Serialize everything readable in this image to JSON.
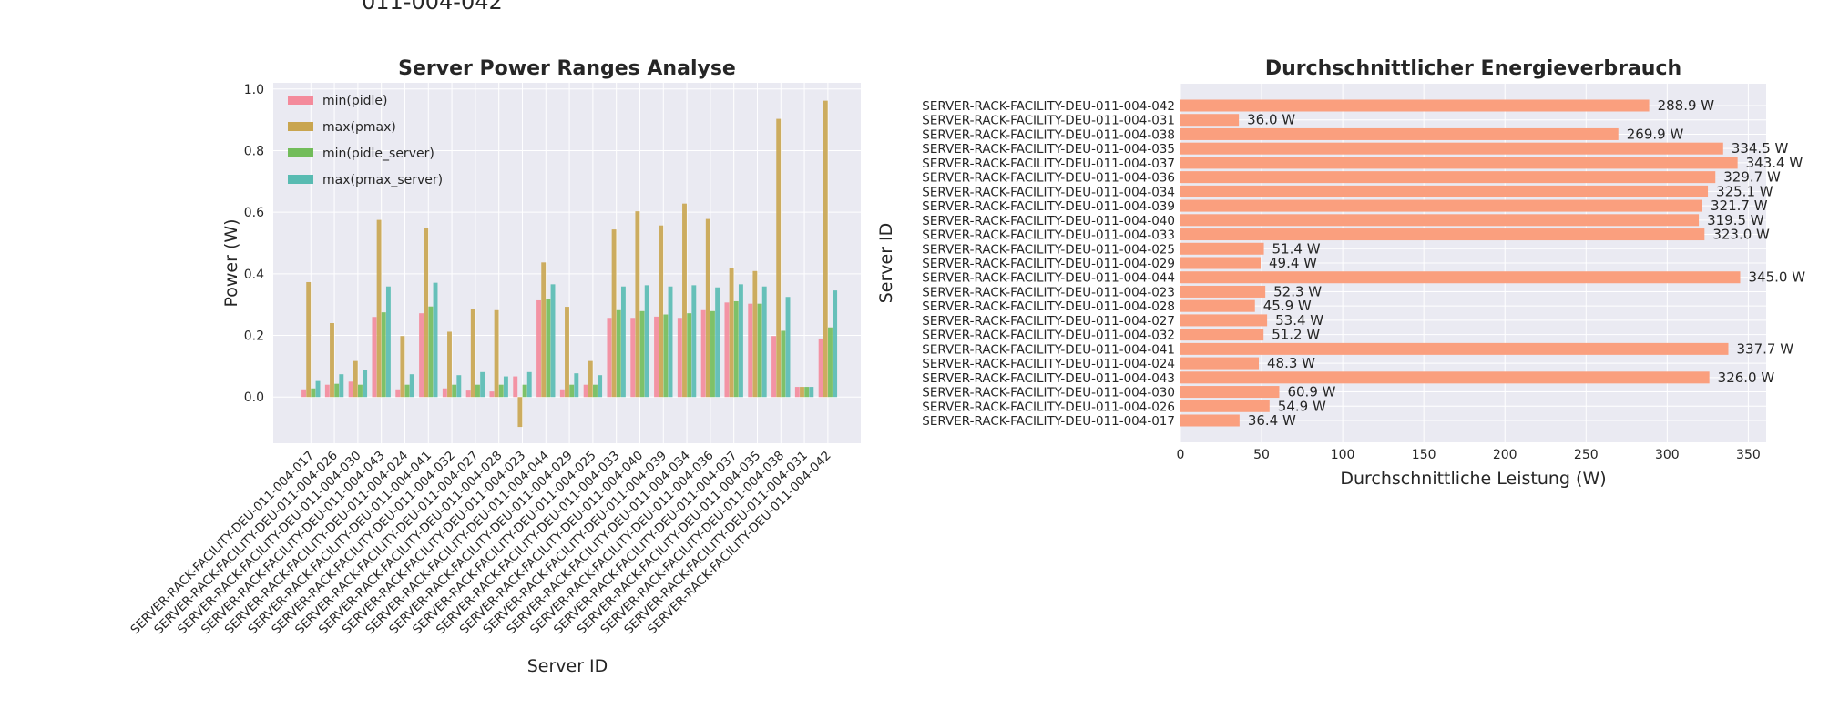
{
  "top_fragment": "011-004-042",
  "chart_data": [
    {
      "type": "bar",
      "title": "Server Power Ranges Analyse",
      "xlabel": "Server ID",
      "ylabel": "Power (W)",
      "ylim": [
        -0.15,
        1.02
      ],
      "yticks": [
        "0.0",
        "0.2",
        "0.4",
        "0.6",
        "0.8",
        "1.0"
      ],
      "grid": true,
      "legend_placement": "top-left",
      "categories": [
        "SERVER-RACK-FACILITY-DEU-011-004-017",
        "SERVER-RACK-FACILITY-DEU-011-004-026",
        "SERVER-RACK-FACILITY-DEU-011-004-030",
        "SERVER-RACK-FACILITY-DEU-011-004-043",
        "SERVER-RACK-FACILITY-DEU-011-004-024",
        "SERVER-RACK-FACILITY-DEU-011-004-041",
        "SERVER-RACK-FACILITY-DEU-011-004-032",
        "SERVER-RACK-FACILITY-DEU-011-004-027",
        "SERVER-RACK-FACILITY-DEU-011-004-028",
        "SERVER-RACK-FACILITY-DEU-011-004-023",
        "SERVER-RACK-FACILITY-DEU-011-004-044",
        "SERVER-RACK-FACILITY-DEU-011-004-029",
        "SERVER-RACK-FACILITY-DEU-011-004-025",
        "SERVER-RACK-FACILITY-DEU-011-004-033",
        "SERVER-RACK-FACILITY-DEU-011-004-040",
        "SERVER-RACK-FACILITY-DEU-011-004-039",
        "SERVER-RACK-FACILITY-DEU-011-004-034",
        "SERVER-RACK-FACILITY-DEU-011-004-036",
        "SERVER-RACK-FACILITY-DEU-011-004-037",
        "SERVER-RACK-FACILITY-DEU-011-004-035",
        "SERVER-RACK-FACILITY-DEU-011-004-038",
        "SERVER-RACK-FACILITY-DEU-011-004-031",
        "SERVER-RACK-FACILITY-DEU-011-004-042"
      ],
      "series": [
        {
          "name": "min(pidle)",
          "color": "#f48a9b",
          "values": [
            0.025,
            0.04,
            0.05,
            0.26,
            0.025,
            0.272,
            0.028,
            0.021,
            0.018,
            0.067,
            0.314,
            0.025,
            0.04,
            0.257,
            0.257,
            0.261,
            0.257,
            0.282,
            0.307,
            0.303,
            0.198,
            0.033,
            0.19
          ]
        },
        {
          "name": "max(pmax)",
          "color": "#c9a54f",
          "values": [
            0.373,
            0.24,
            0.117,
            0.575,
            0.198,
            0.55,
            0.212,
            0.286,
            0.282,
            -0.097,
            0.437,
            0.293,
            0.117,
            0.544,
            0.603,
            0.557,
            0.628,
            0.578,
            0.42,
            0.409,
            0.903,
            0.033,
            0.962
          ]
        },
        {
          "name": "min(pidle_server)",
          "color": "#72bc5a",
          "values": [
            0.028,
            0.043,
            0.04,
            0.275,
            0.04,
            0.294,
            0.04,
            0.04,
            0.04,
            0.04,
            0.318,
            0.04,
            0.04,
            0.282,
            0.279,
            0.268,
            0.272,
            0.279,
            0.311,
            0.303,
            0.215,
            0.033,
            0.226
          ]
        },
        {
          "name": "max(pmax_server)",
          "color": "#58bbb2",
          "values": [
            0.052,
            0.074,
            0.088,
            0.359,
            0.074,
            0.371,
            0.071,
            0.081,
            0.067,
            0.081,
            0.366,
            0.077,
            0.071,
            0.359,
            0.363,
            0.359,
            0.363,
            0.356,
            0.366,
            0.359,
            0.325,
            0.033,
            0.346
          ]
        }
      ]
    },
    {
      "type": "bar",
      "orientation": "horizontal",
      "title": "Durchschnittlicher Energieverbrauch",
      "xlabel": "Durchschnittliche Leistung (W)",
      "ylabel": "Server ID",
      "xlim": [
        0,
        361
      ],
      "xticks": [
        "0",
        "50",
        "100",
        "150",
        "200",
        "250",
        "300",
        "350"
      ],
      "grid": true,
      "color": "#fa9f7e",
      "categories": [
        "SERVER-RACK-FACILITY-DEU-011-004-042",
        "SERVER-RACK-FACILITY-DEU-011-004-031",
        "SERVER-RACK-FACILITY-DEU-011-004-038",
        "SERVER-RACK-FACILITY-DEU-011-004-035",
        "SERVER-RACK-FACILITY-DEU-011-004-037",
        "SERVER-RACK-FACILITY-DEU-011-004-036",
        "SERVER-RACK-FACILITY-DEU-011-004-034",
        "SERVER-RACK-FACILITY-DEU-011-004-039",
        "SERVER-RACK-FACILITY-DEU-011-004-040",
        "SERVER-RACK-FACILITY-DEU-011-004-033",
        "SERVER-RACK-FACILITY-DEU-011-004-025",
        "SERVER-RACK-FACILITY-DEU-011-004-029",
        "SERVER-RACK-FACILITY-DEU-011-004-044",
        "SERVER-RACK-FACILITY-DEU-011-004-023",
        "SERVER-RACK-FACILITY-DEU-011-004-028",
        "SERVER-RACK-FACILITY-DEU-011-004-027",
        "SERVER-RACK-FACILITY-DEU-011-004-032",
        "SERVER-RACK-FACILITY-DEU-011-004-041",
        "SERVER-RACK-FACILITY-DEU-011-004-024",
        "SERVER-RACK-FACILITY-DEU-011-004-043",
        "SERVER-RACK-FACILITY-DEU-011-004-030",
        "SERVER-RACK-FACILITY-DEU-011-004-026",
        "SERVER-RACK-FACILITY-DEU-011-004-017"
      ],
      "values": [
        288.9,
        36.0,
        269.9,
        334.5,
        343.4,
        329.7,
        325.1,
        321.7,
        319.5,
        323.0,
        51.4,
        49.4,
        345.0,
        52.3,
        45.9,
        53.4,
        51.2,
        337.7,
        48.3,
        326.0,
        60.9,
        54.9,
        36.4
      ],
      "data_labels": [
        "288.9 W",
        "36.0 W",
        "269.9 W",
        "334.5 W",
        "343.4 W",
        "329.7 W",
        "325.1 W",
        "321.7 W",
        "319.5 W",
        "323.0 W",
        "51.4 W",
        "49.4 W",
        "345.0 W",
        "52.3 W",
        "45.9 W",
        "53.4 W",
        "51.2 W",
        "337.7 W",
        "48.3 W",
        "326.0 W",
        "60.9 W",
        "54.9 W",
        "36.4 W"
      ]
    }
  ]
}
